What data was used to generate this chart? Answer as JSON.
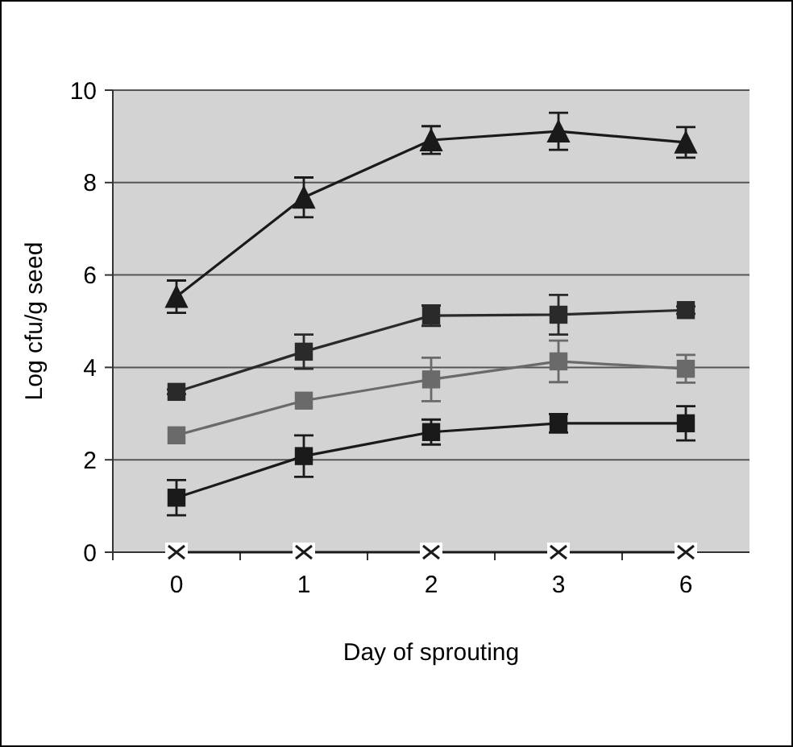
{
  "chart_data": {
    "type": "line",
    "xlabel": "Day of sprouting",
    "ylabel": "Log cfu/g seed",
    "categories": [
      "0",
      "1",
      "2",
      "3",
      "6"
    ],
    "ylim": [
      0,
      10
    ],
    "yticks": [
      0,
      2,
      4,
      6,
      8,
      10
    ],
    "grid": "y",
    "series": [
      {
        "color": "#1a1a1a",
        "marker": "triangle",
        "values": [
          5.53,
          7.68,
          8.92,
          9.11,
          8.87
        ],
        "errors": [
          0.35,
          0.43,
          0.3,
          0.4,
          0.33
        ]
      },
      {
        "color": "#2a2a2a",
        "marker": "square",
        "values": [
          3.47,
          4.34,
          5.12,
          5.14,
          5.24
        ],
        "errors": [
          0.05,
          0.37,
          0.22,
          0.43,
          0.08
        ]
      },
      {
        "color": "#6a6a6a",
        "marker": "square",
        "values": [
          2.53,
          3.28,
          3.74,
          4.13,
          3.97
        ],
        "errors": [
          null,
          null,
          0.47,
          0.45,
          0.3
        ]
      },
      {
        "color": "#1a1a1a",
        "marker": "square",
        "values": [
          1.18,
          2.08,
          2.6,
          2.79,
          2.79
        ],
        "errors": [
          0.38,
          0.45,
          0.27,
          0.2,
          0.37
        ]
      },
      {
        "color": "#1a1a1a",
        "marker": "cross",
        "values": [
          0,
          0,
          0,
          0,
          0
        ]
      }
    ]
  }
}
